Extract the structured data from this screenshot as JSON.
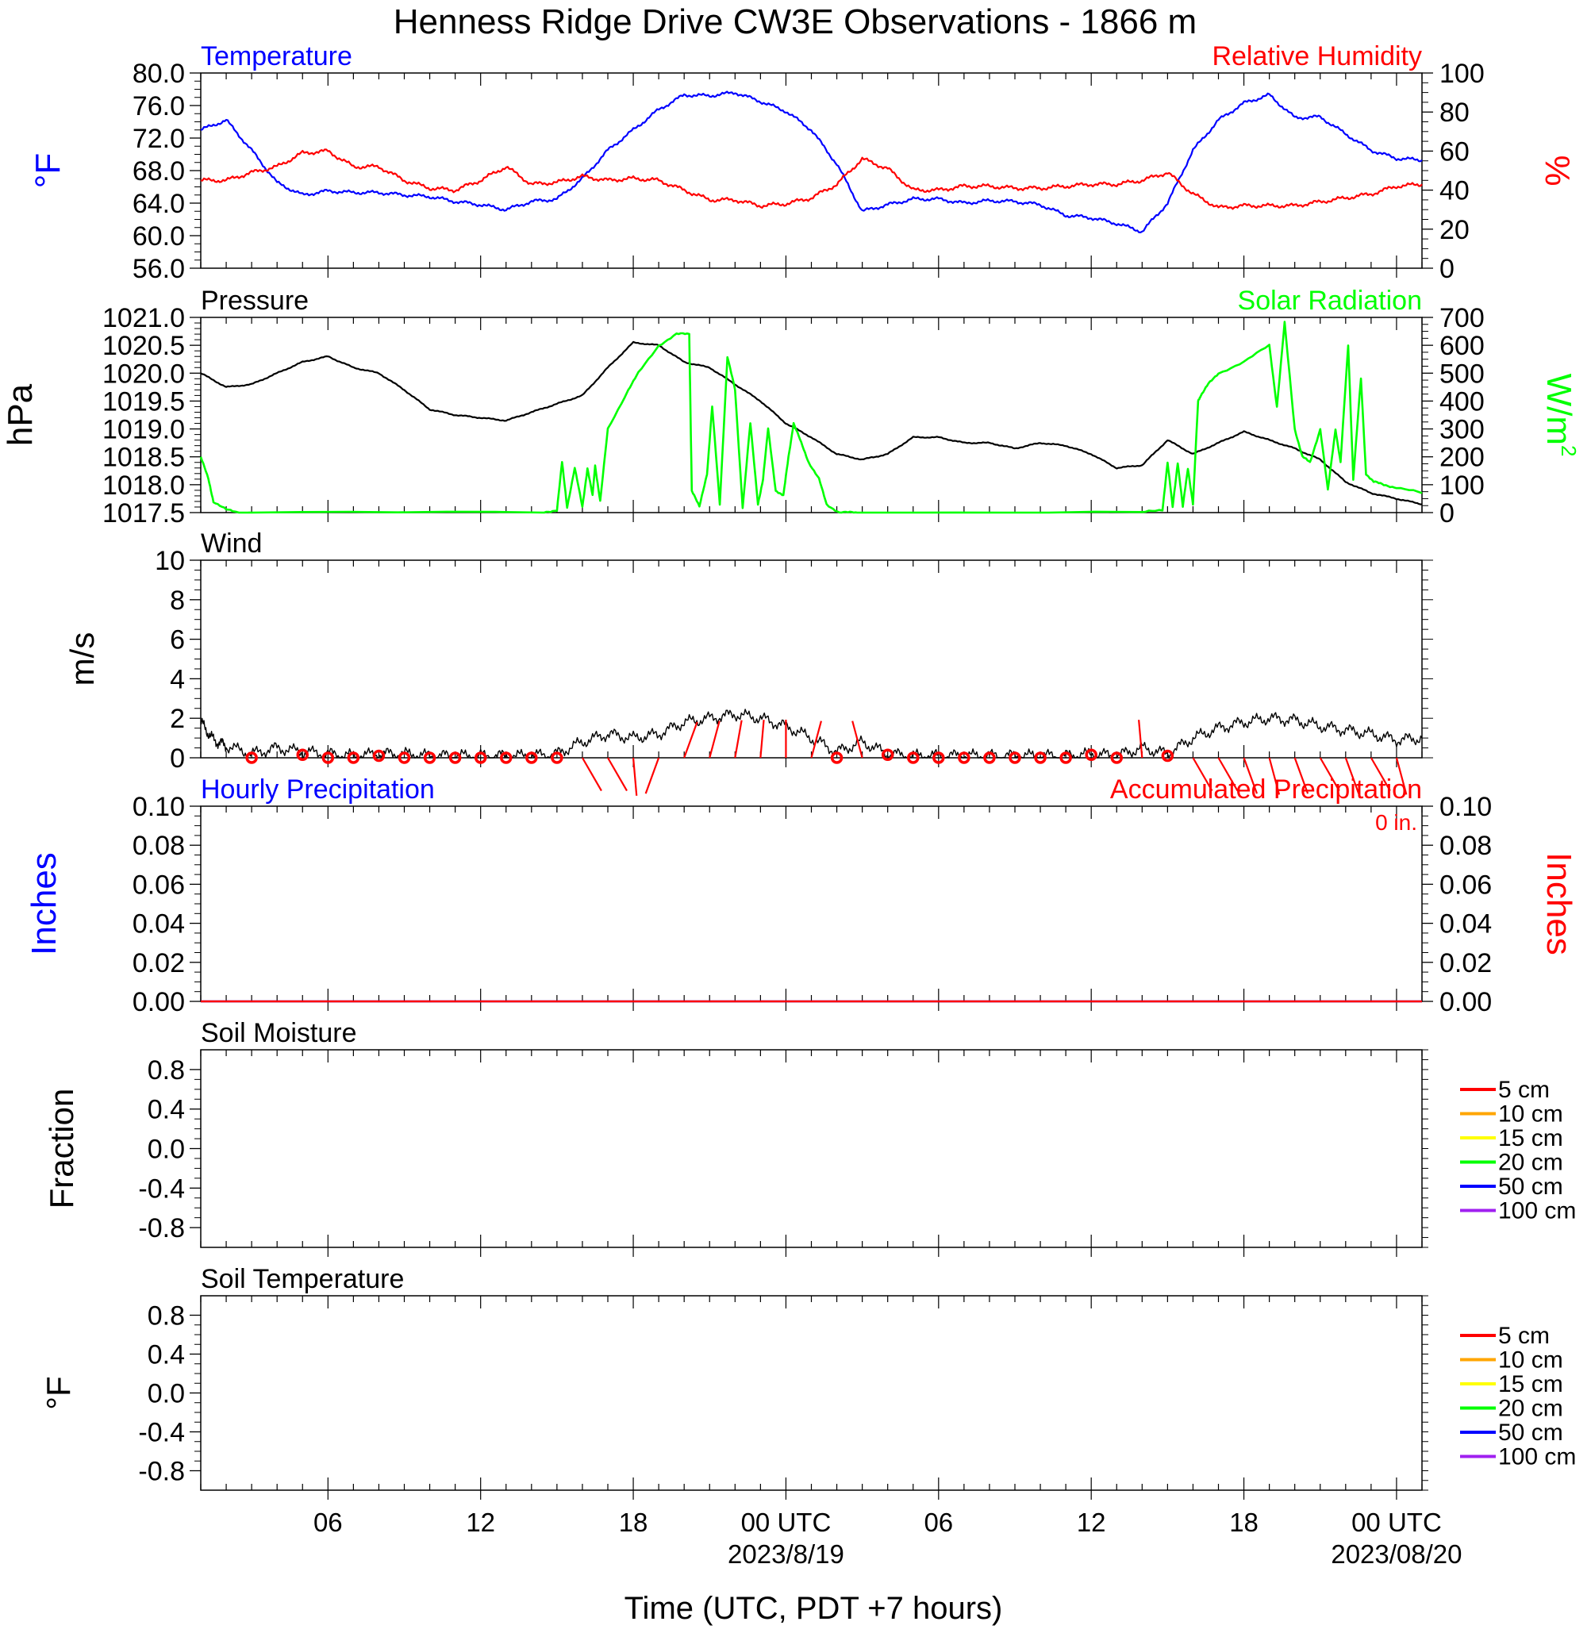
{
  "title": "Henness Ridge Drive CW3E Observations - 1866 m",
  "colors": {
    "temperature": "#0000ff",
    "humidity": "#ff0000",
    "pressure": "#000000",
    "solar": "#00ff00",
    "wind_speed": "#000000",
    "wind_barb": "#ff0000",
    "soil_5cm": "#ff0000",
    "soil_10cm": "#ffa500",
    "soil_15cm": "#ffff00",
    "soil_20cm": "#00ff00",
    "soil_50cm": "#0000ff",
    "soil_100cm": "#a020f0"
  },
  "x_axis": {
    "title": "Time (UTC, PDT +7 hours)",
    "domain_hours": [
      1,
      49
    ],
    "ticks": [
      {
        "hour": 6,
        "label": "06"
      },
      {
        "hour": 12,
        "label": "12"
      },
      {
        "hour": 18,
        "label": "18"
      },
      {
        "hour": 24,
        "label": "00 UTC"
      },
      {
        "hour": 30,
        "label": "06"
      },
      {
        "hour": 36,
        "label": "12"
      },
      {
        "hour": 42,
        "label": "18"
      },
      {
        "hour": 48,
        "label": "00 UTC"
      }
    ],
    "date_labels": [
      {
        "hour": 24,
        "label": "2023/8/19"
      },
      {
        "hour": 48,
        "label": "2023/08/20"
      }
    ]
  },
  "chart_data": [
    {
      "type": "line",
      "panel": "temperature-humidity",
      "title_left": "Temperature",
      "title_right": "Relative Humidity",
      "left_unit": "°F",
      "right_unit": "%",
      "left_ylim": [
        56,
        80
      ],
      "left_ticks": [
        "80.0",
        "76.0",
        "72.0",
        "68.0",
        "64.0",
        "60.0",
        "56.0"
      ],
      "right_ylim": [
        0,
        100
      ],
      "right_ticks": [
        "100",
        "80",
        "60",
        "40",
        "20",
        "0"
      ],
      "x": [
        1,
        2,
        3,
        4,
        5,
        6,
        7,
        8,
        9,
        10,
        11,
        12,
        13,
        14,
        15,
        16,
        17,
        18,
        19,
        20,
        21,
        22,
        23,
        24,
        25,
        26,
        27,
        28,
        29,
        30,
        31,
        32,
        33,
        34,
        35,
        36,
        37,
        38,
        39,
        40,
        41,
        42,
        43,
        44,
        45,
        46,
        47,
        48,
        49
      ],
      "series": [
        {
          "name": "Temperature",
          "axis": "left",
          "color_key": "temperature",
          "values": [
            73,
            74.2,
            70.5,
            66.5,
            65,
            65.5,
            65.3,
            65.3,
            65,
            64.8,
            64.2,
            63.8,
            63.2,
            64.2,
            64.5,
            67,
            70.5,
            73,
            75.5,
            77.3,
            77.2,
            77.6,
            76.5,
            75.3,
            73,
            68.8,
            63,
            63.8,
            64.5,
            64.5,
            64,
            64.3,
            64.2,
            63.8,
            62.5,
            62.2,
            61.5,
            60.5,
            64,
            70.5,
            74.2,
            76.3,
            77.3,
            74.5,
            74.6,
            72.5,
            70.5,
            69.5,
            69.3
          ]
        },
        {
          "name": "Relative Humidity",
          "axis": "right",
          "color_key": "humidity",
          "values": [
            45,
            45,
            49,
            52,
            59,
            60,
            52,
            52,
            45,
            41,
            40,
            45,
            52,
            43,
            44,
            47,
            45,
            46,
            45,
            40,
            35,
            35,
            32,
            33,
            36,
            43,
            56,
            51,
            40,
            40,
            42,
            42,
            41,
            41,
            42,
            43,
            43,
            45,
            49,
            38,
            31,
            32,
            32,
            32,
            34,
            36,
            38,
            42,
            43
          ]
        }
      ]
    },
    {
      "type": "line",
      "panel": "pressure-solar",
      "title_left": "Pressure",
      "title_right": "Solar Radiation",
      "left_unit": "hPa",
      "right_unit": "W/m",
      "right_unit_superscript": "2",
      "left_ylim": [
        1017.5,
        1021.0
      ],
      "left_ticks": [
        "1021.0",
        "1020.5",
        "1020.0",
        "1019.5",
        "1019.0",
        "1018.5",
        "1018.0",
        "1017.5"
      ],
      "right_ylim": [
        0,
        700
      ],
      "right_ticks": [
        "700",
        "600",
        "500",
        "400",
        "300",
        "200",
        "100",
        "0"
      ],
      "series": [
        {
          "name": "Pressure",
          "axis": "left",
          "color_key": "pressure",
          "x": [
            1,
            2,
            3,
            4,
            5,
            6,
            7,
            8,
            9,
            10,
            11,
            12,
            13,
            14,
            15,
            16,
            17,
            18,
            19,
            20,
            21,
            22,
            23,
            24,
            25,
            26,
            27,
            28,
            29,
            30,
            31,
            32,
            33,
            34,
            35,
            36,
            37,
            38,
            39,
            40,
            41,
            42,
            43,
            44,
            45,
            46,
            47,
            48,
            49
          ],
          "values": [
            1020.0,
            1019.75,
            1019.8,
            1020.0,
            1020.2,
            1020.3,
            1020.1,
            1020.0,
            1019.7,
            1019.35,
            1019.25,
            1019.2,
            1019.15,
            1019.3,
            1019.45,
            1019.6,
            1020.1,
            1020.55,
            1020.5,
            1020.2,
            1020.1,
            1019.8,
            1019.5,
            1019.1,
            1018.85,
            1018.55,
            1018.45,
            1018.55,
            1018.85,
            1018.85,
            1018.75,
            1018.75,
            1018.65,
            1018.75,
            1018.7,
            1018.55,
            1018.3,
            1018.35,
            1018.8,
            1018.55,
            1018.75,
            1018.95,
            1018.8,
            1018.65,
            1018.45,
            1018.05,
            1017.85,
            1017.75,
            1017.65
          ]
        },
        {
          "name": "Solar Radiation",
          "axis": "right",
          "color_key": "solar",
          "x": [
            1,
            1.3,
            1.5,
            2,
            2.5,
            3,
            14.5,
            15,
            15.2,
            15.4,
            15.7,
            16,
            16.2,
            16.4,
            16.5,
            16.7,
            17,
            17.8,
            18.2,
            19,
            19.7,
            20.2,
            20.3,
            20.6,
            20.9,
            21.1,
            21.4,
            21.7,
            22,
            22.3,
            22.6,
            22.9,
            23.1,
            23.3,
            23.6,
            23.9,
            24.1,
            24.3,
            24.6,
            24.9,
            25.3,
            25.6,
            26.1,
            26.6,
            27,
            38,
            38.8,
            39,
            39.2,
            39.4,
            39.6,
            39.8,
            40,
            40.2,
            40.3,
            40.6,
            41,
            42,
            43,
            43.3,
            43.6,
            44,
            44.3,
            44.6,
            45,
            45.3,
            45.6,
            45.8,
            46.1,
            46.3,
            46.6,
            46.8,
            47.1,
            47.5,
            48,
            49
          ],
          "values": [
            200,
            120,
            40,
            10,
            0,
            0,
            0,
            10,
            180,
            20,
            160,
            20,
            160,
            60,
            170,
            40,
            300,
            440,
            500,
            600,
            640,
            640,
            80,
            20,
            140,
            380,
            30,
            560,
            440,
            20,
            320,
            30,
            120,
            300,
            80,
            60,
            200,
            320,
            250,
            180,
            120,
            30,
            0,
            0,
            0,
            0,
            10,
            180,
            20,
            180,
            20,
            160,
            30,
            400,
            420,
            460,
            500,
            540,
            600,
            380,
            680,
            300,
            200,
            180,
            300,
            80,
            300,
            180,
            600,
            120,
            480,
            140,
            110,
            100,
            90,
            70
          ]
        }
      ]
    },
    {
      "type": "line",
      "panel": "wind",
      "title_left": "Wind",
      "left_unit": "m/s",
      "left_ylim": [
        0,
        10
      ],
      "left_ticks": [
        "10",
        "8",
        "6",
        "4",
        "2",
        "0"
      ],
      "series": [
        {
          "name": "Wind",
          "axis": "left",
          "color_key": "wind_speed",
          "x": [
            1,
            1.5,
            2,
            3,
            4,
            5,
            6,
            7,
            8,
            9,
            10,
            11,
            12,
            13,
            14,
            15,
            16,
            17,
            18,
            19,
            20,
            21,
            22,
            23,
            24,
            25,
            26,
            27,
            28,
            29,
            30,
            31,
            32,
            33,
            34,
            35,
            36,
            37,
            38,
            39,
            40,
            41,
            42,
            43,
            44,
            45,
            46,
            47,
            48,
            49
          ],
          "values": [
            1.8,
            0.9,
            0.6,
            0.2,
            0.5,
            0.3,
            0.2,
            0.1,
            0.2,
            0.2,
            0.1,
            0.1,
            0.1,
            0.1,
            0.1,
            0.2,
            0.8,
            1.2,
            1.0,
            1.2,
            1.8,
            2.0,
            2.2,
            2.0,
            1.6,
            1.0,
            0.3,
            0.8,
            0.2,
            0.1,
            0.1,
            0.1,
            0.1,
            0.1,
            0.1,
            0.1,
            0.2,
            0.1,
            0.5,
            0.2,
            1.0,
            1.5,
            1.8,
            2.0,
            1.9,
            1.6,
            1.4,
            1.2,
            0.9,
            1.0
          ]
        },
        {
          "name": "Wind barbs",
          "axis": "left",
          "color_key": "wind_barb",
          "barb_hours": [
            3,
            5,
            6,
            7,
            8,
            9,
            10,
            11,
            12,
            13,
            14,
            15,
            16,
            17,
            18,
            19,
            20,
            21,
            22,
            23,
            24,
            25,
            26,
            27,
            28,
            29,
            30,
            31,
            32,
            33,
            34,
            35,
            36,
            37,
            38,
            39,
            40,
            41,
            42,
            43,
            44,
            45,
            46,
            47,
            48
          ],
          "barb_speed_ms": [
            0,
            0.3,
            0,
            0,
            0.2,
            0,
            0,
            0,
            0,
            0,
            0,
            0,
            1.2,
            1.0,
            1.5,
            1.3,
            1.7,
            1.5,
            1.5,
            1.6,
            1.6,
            1.3,
            0,
            1.0,
            0.3,
            0,
            0,
            0,
            0,
            0,
            0,
            0,
            0.3,
            0,
            1.0,
            0.2,
            1.0,
            1.3,
            1.4,
            1.3,
            1.4,
            1.4,
            1.6,
            1.7,
            1.8
          ],
          "barb_angle_deg": [
            0,
            0,
            0,
            0,
            0,
            0,
            0,
            0,
            0,
            0,
            0,
            0,
            150,
            150,
            175,
            200,
            20,
            15,
            10,
            5,
            0,
            15,
            0,
            345,
            0,
            0,
            0,
            0,
            0,
            0,
            0,
            0,
            0,
            0,
            355,
            0,
            150,
            150,
            160,
            165,
            160,
            150,
            160,
            150,
            165
          ]
        }
      ]
    },
    {
      "type": "line",
      "panel": "precipitation",
      "title_left": "Hourly Precipitation",
      "title_right": "Accumulated Precipitation",
      "total_label": "0 in.",
      "left_unit": "Inches",
      "right_unit": "Inches",
      "left_ylim": [
        0,
        0.1
      ],
      "left_ticks": [
        "0.10",
        "0.08",
        "0.06",
        "0.04",
        "0.02",
        "0.00"
      ],
      "right_ylim": [
        0,
        0.1
      ],
      "right_ticks": [
        "0.10",
        "0.08",
        "0.06",
        "0.04",
        "0.02",
        "0.00"
      ],
      "x": [
        1,
        49
      ],
      "series": [
        {
          "name": "Hourly Precipitation",
          "axis": "left",
          "color_key": "temperature",
          "values": [
            0,
            0
          ]
        },
        {
          "name": "Accumulated Precipitation",
          "axis": "right",
          "color_key": "humidity",
          "values": [
            0,
            0
          ]
        }
      ]
    },
    {
      "type": "line",
      "panel": "soil-moisture",
      "title_left": "Soil Moisture",
      "left_unit": "Fraction",
      "left_ylim": [
        -1,
        1
      ],
      "left_ticks": [
        "0.8",
        "0.4",
        "0.0",
        "-0.4",
        "-0.8"
      ],
      "legend": [
        {
          "label": "5 cm",
          "color_key": "soil_5cm"
        },
        {
          "label": "10 cm",
          "color_key": "soil_10cm"
        },
        {
          "label": "15 cm",
          "color_key": "soil_15cm"
        },
        {
          "label": "20 cm",
          "color_key": "soil_20cm"
        },
        {
          "label": "50 cm",
          "color_key": "soil_50cm"
        },
        {
          "label": "100 cm",
          "color_key": "soil_100cm"
        }
      ],
      "series": []
    },
    {
      "type": "line",
      "panel": "soil-temperature",
      "title_left": "Soil Temperature",
      "left_unit": "°F",
      "left_ylim": [
        -1,
        1
      ],
      "left_ticks": [
        "0.8",
        "0.4",
        "0.0",
        "-0.4",
        "-0.8"
      ],
      "legend": [
        {
          "label": "5 cm",
          "color_key": "soil_5cm"
        },
        {
          "label": "10 cm",
          "color_key": "soil_10cm"
        },
        {
          "label": "15 cm",
          "color_key": "soil_15cm"
        },
        {
          "label": "20 cm",
          "color_key": "soil_20cm"
        },
        {
          "label": "50 cm",
          "color_key": "soil_50cm"
        },
        {
          "label": "100 cm",
          "color_key": "soil_100cm"
        }
      ],
      "series": []
    }
  ]
}
